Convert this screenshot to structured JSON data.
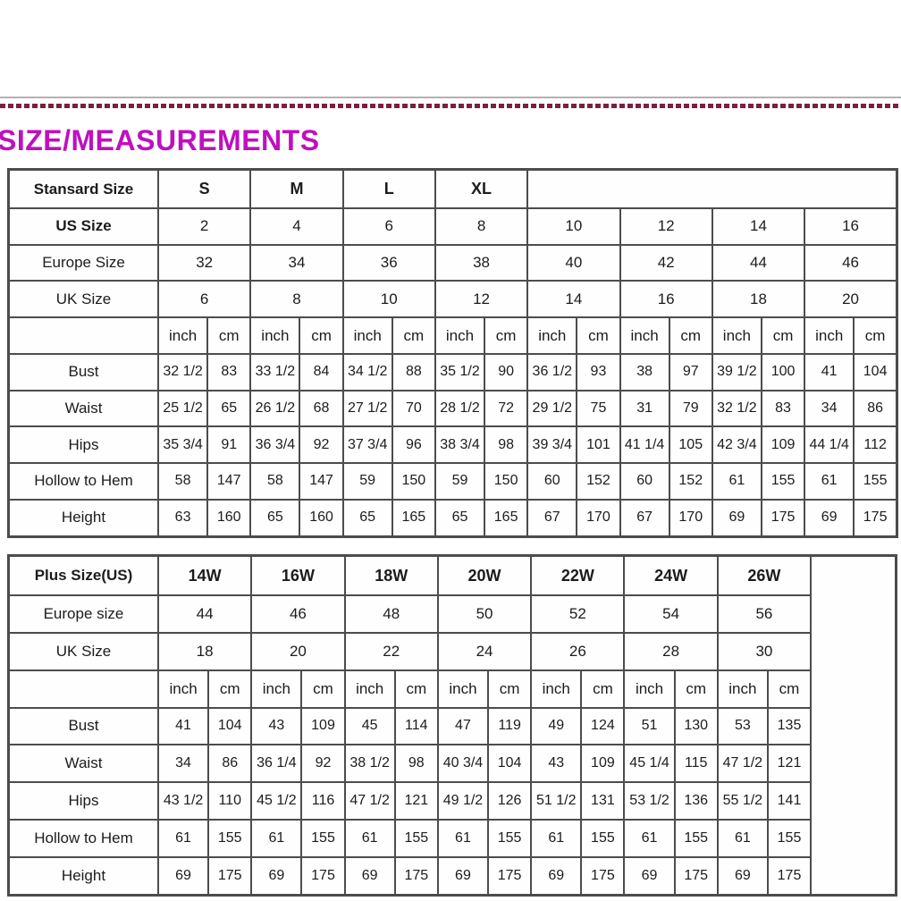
{
  "page": {
    "title": "SIZE/MEASUREMENTS",
    "title_color": "#bf10bf",
    "dash_line_color": "#7c1f3e",
    "table_border_color": "#4c4c4c"
  },
  "standard_table": {
    "header": {
      "label": "Stansard Size",
      "groups": [
        "S",
        "M",
        "L",
        "XL"
      ]
    },
    "size_rows": [
      {
        "label": "US Size",
        "bold": true,
        "values": [
          "2",
          "4",
          "6",
          "8",
          "10",
          "12",
          "14",
          "16"
        ]
      },
      {
        "label": "Europe Size",
        "bold": false,
        "values": [
          "32",
          "34",
          "36",
          "38",
          "40",
          "42",
          "44",
          "46"
        ]
      },
      {
        "label": "UK Size",
        "bold": false,
        "values": [
          "6",
          "8",
          "10",
          "12",
          "14",
          "16",
          "18",
          "20"
        ]
      }
    ],
    "unit_row": [
      "inch",
      "cm",
      "inch",
      "cm",
      "inch",
      "cm",
      "inch",
      "cm",
      "inch",
      "cm",
      "inch",
      "cm",
      "inch",
      "cm",
      "inch",
      "cm"
    ],
    "measure_rows": [
      {
        "label": "Bust",
        "cells": [
          "32 1/2",
          "83",
          "33 1/2",
          "84",
          "34 1/2",
          "88",
          "35 1/2",
          "90",
          "36 1/2",
          "93",
          "38",
          "97",
          "39 1/2",
          "100",
          "41",
          "104"
        ]
      },
      {
        "label": "Waist",
        "cells": [
          "25 1/2",
          "65",
          "26 1/2",
          "68",
          "27 1/2",
          "70",
          "28 1/2",
          "72",
          "29 1/2",
          "75",
          "31",
          "79",
          "32 1/2",
          "83",
          "34",
          "86"
        ]
      },
      {
        "label": "Hips",
        "cells": [
          "35 3/4",
          "91",
          "36 3/4",
          "92",
          "37 3/4",
          "96",
          "38 3/4",
          "98",
          "39 3/4",
          "101",
          "41 1/4",
          "105",
          "42 3/4",
          "109",
          "44 1/4",
          "112"
        ]
      },
      {
        "label": "Hollow to Hem",
        "cells": [
          "58",
          "147",
          "58",
          "147",
          "59",
          "150",
          "59",
          "150",
          "60",
          "152",
          "60",
          "152",
          "61",
          "155",
          "61",
          "155"
        ]
      },
      {
        "label": "Height",
        "cells": [
          "63",
          "160",
          "65",
          "160",
          "65",
          "165",
          "65",
          "165",
          "67",
          "170",
          "67",
          "170",
          "69",
          "175",
          "69",
          "175"
        ]
      }
    ]
  },
  "plus_table": {
    "header": {
      "label": "Plus Size(US)",
      "groups": [
        "14W",
        "16W",
        "18W",
        "20W",
        "22W",
        "24W",
        "26W"
      ]
    },
    "size_rows": [
      {
        "label": "Europe size",
        "bold": false,
        "values": [
          "44",
          "46",
          "48",
          "50",
          "52",
          "54",
          "56"
        ]
      },
      {
        "label": "UK Size",
        "bold": false,
        "values": [
          "18",
          "20",
          "22",
          "24",
          "26",
          "28",
          "30"
        ]
      }
    ],
    "unit_row": [
      "inch",
      "cm",
      "inch",
      "cm",
      "inch",
      "cm",
      "inch",
      "cm",
      "inch",
      "cm",
      "inch",
      "cm",
      "inch",
      "cm"
    ],
    "measure_rows": [
      {
        "label": "Bust",
        "cells": [
          "41",
          "104",
          "43",
          "109",
          "45",
          "114",
          "47",
          "119",
          "49",
          "124",
          "51",
          "130",
          "53",
          "135"
        ]
      },
      {
        "label": "Waist",
        "cells": [
          "34",
          "86",
          "36 1/4",
          "92",
          "38 1/2",
          "98",
          "40 3/4",
          "104",
          "43",
          "109",
          "45 1/4",
          "115",
          "47 1/2",
          "121"
        ]
      },
      {
        "label": "Hips",
        "cells": [
          "43 1/2",
          "110",
          "45 1/2",
          "116",
          "47 1/2",
          "121",
          "49 1/2",
          "126",
          "51 1/2",
          "131",
          "53 1/2",
          "136",
          "55 1/2",
          "141"
        ]
      },
      {
        "label": "Hollow to Hem",
        "cells": [
          "61",
          "155",
          "61",
          "155",
          "61",
          "155",
          "61",
          "155",
          "61",
          "155",
          "61",
          "155",
          "61",
          "155"
        ]
      },
      {
        "label": "Height",
        "cells": [
          "69",
          "175",
          "69",
          "175",
          "69",
          "175",
          "69",
          "175",
          "69",
          "175",
          "69",
          "175",
          "69",
          "175"
        ]
      }
    ],
    "has_trailing_empty_column": true
  }
}
